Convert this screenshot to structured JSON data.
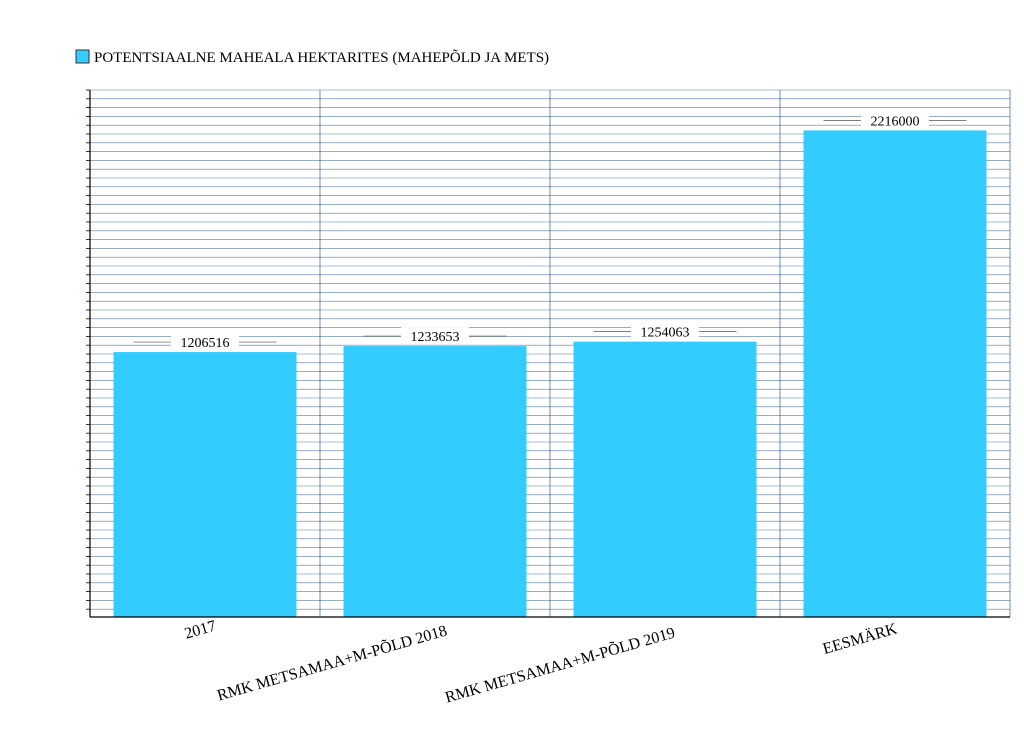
{
  "chart_data": {
    "type": "bar",
    "title": "",
    "legend": {
      "label": "POTENTSIAALNE MAHEALA HEKTARITES (MAHEPÕLD JA METS)",
      "position": "top-left"
    },
    "categories": [
      "2017",
      "RMK METSAMAA+M-PÕLD 2018",
      "RMK METSAMAA+M-PÕLD 2019",
      "EESMÄRK"
    ],
    "series": [
      {
        "name": "POTENTSIAALNE MAHEALA HEKTARITES (MAHEPÕLD JA METS)",
        "values": [
          1206516,
          1233653,
          1254063,
          2216000
        ],
        "color": "#33ccff"
      }
    ],
    "data_labels": [
      "1206516",
      "1233653",
      "1254063",
      "2216000"
    ],
    "ylim": [
      0,
      2400000
    ],
    "grid": true,
    "colors": {
      "bar": "#33ccff",
      "grid": "#1f4e8c",
      "axis": "#000000"
    }
  }
}
